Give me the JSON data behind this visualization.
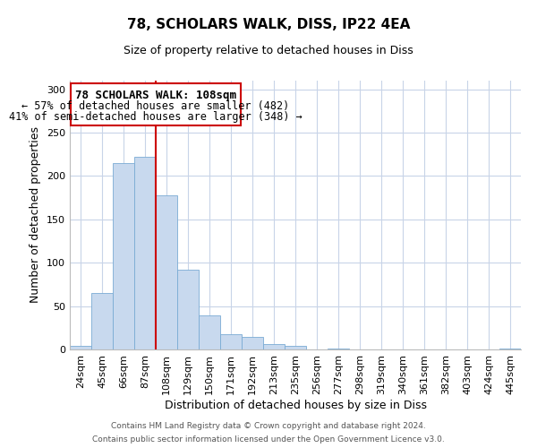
{
  "title": "78, SCHOLARS WALK, DISS, IP22 4EA",
  "subtitle": "Size of property relative to detached houses in Diss",
  "xlabel": "Distribution of detached houses by size in Diss",
  "ylabel": "Number of detached properties",
  "bar_color": "#c8d9ee",
  "bar_edge_color": "#7aabd4",
  "bin_labels": [
    "24sqm",
    "45sqm",
    "66sqm",
    "87sqm",
    "108sqm",
    "129sqm",
    "150sqm",
    "171sqm",
    "192sqm",
    "213sqm",
    "235sqm",
    "256sqm",
    "277sqm",
    "298sqm",
    "319sqm",
    "340sqm",
    "361sqm",
    "382sqm",
    "403sqm",
    "424sqm",
    "445sqm"
  ],
  "bar_heights": [
    4,
    65,
    215,
    222,
    178,
    92,
    39,
    18,
    14,
    6,
    4,
    0,
    1,
    0,
    0,
    0,
    0,
    0,
    0,
    0,
    1
  ],
  "vline_color": "#cc0000",
  "ylim": [
    0,
    310
  ],
  "yticks": [
    0,
    50,
    100,
    150,
    200,
    250,
    300
  ],
  "annotation_title": "78 SCHOLARS WALK: 108sqm",
  "annotation_line1": "← 57% of detached houses are smaller (482)",
  "annotation_line2": "41% of semi-detached houses are larger (348) →",
  "footer_line1": "Contains HM Land Registry data © Crown copyright and database right 2024.",
  "footer_line2": "Contains public sector information licensed under the Open Government Licence v3.0.",
  "background_color": "#ffffff",
  "grid_color": "#c8d4e8"
}
